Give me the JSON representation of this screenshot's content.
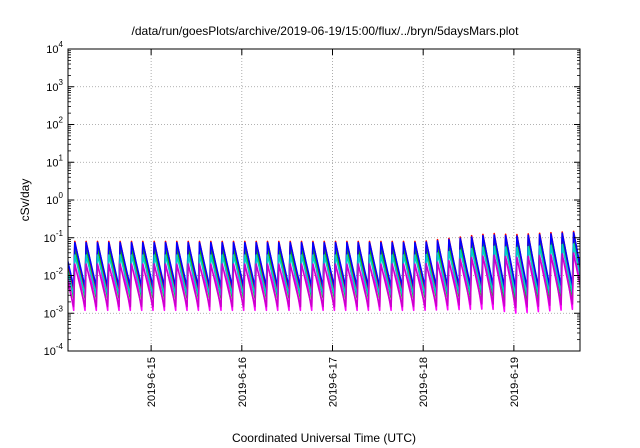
{
  "chart_data": {
    "type": "line",
    "title": "/data/run/goesPlots/archive/2019-06-19/15:00/flux/../bryn/5daysMars.plot",
    "xlabel": "Coordinated Universal Time (UTC)",
    "ylabel": "cSv/day",
    "yscale": "log",
    "ylim": [
      0.0001,
      10000
    ],
    "y_ticks": [
      {
        "base": "10",
        "exp": "-4"
      },
      {
        "base": "10",
        "exp": "-3"
      },
      {
        "base": "10",
        "exp": "-2"
      },
      {
        "base": "10",
        "exp": "-1"
      },
      {
        "base": "10",
        "exp": "0"
      },
      {
        "base": "10",
        "exp": "1"
      },
      {
        "base": "10",
        "exp": "2"
      },
      {
        "base": "10",
        "exp": "3"
      },
      {
        "base": "10",
        "exp": "4"
      }
    ],
    "x_ticks": [
      "2019-6-15",
      "2019-6-16",
      "2019-6-17",
      "2019-6-18",
      "2019-6-19"
    ],
    "xlim": [
      "2019-06-14 02:00",
      "2019-06-19 17:30"
    ],
    "grid": true,
    "oscillation_period_hours": 3,
    "series": [
      {
        "color": "#ff00ff",
        "x": [
          "2019-06-14",
          "2019-06-15",
          "2019-06-16",
          "2019-06-17",
          "2019-06-18",
          "2019-06-18 18:00",
          "2019-06-19",
          "2019-06-19 17:00"
        ],
        "peaks": [
          0.055,
          0.055,
          0.055,
          0.055,
          0.055,
          0.09,
          0.08,
          0.1
        ],
        "troughs": [
          0.0012,
          0.0012,
          0.0012,
          0.0012,
          0.0012,
          0.0013,
          0.001,
          0.0013
        ]
      },
      {
        "color": "#00cc00",
        "x": [
          "2019-06-14",
          "2019-06-15",
          "2019-06-16",
          "2019-06-17",
          "2019-06-18",
          "2019-06-18 18:00",
          "2019-06-19",
          "2019-06-19 17:00"
        ],
        "peaks": [
          0.06,
          0.06,
          0.06,
          0.06,
          0.06,
          0.1,
          0.09,
          0.11
        ],
        "troughs": [
          0.0025,
          0.0025,
          0.0025,
          0.0025,
          0.0025,
          0.0028,
          0.002,
          0.0028
        ]
      },
      {
        "color": "#ff0000",
        "x": [
          "2019-06-14",
          "2019-06-15",
          "2019-06-16",
          "2019-06-17",
          "2019-06-18",
          "2019-06-18 18:00",
          "2019-06-19",
          "2019-06-19 17:00"
        ],
        "peaks": [
          0.08,
          0.08,
          0.08,
          0.08,
          0.08,
          0.13,
          0.12,
          0.15
        ],
        "troughs": [
          0.004,
          0.004,
          0.004,
          0.004,
          0.004,
          0.0045,
          0.0035,
          0.0045
        ]
      },
      {
        "color": "#0000ff",
        "x": [
          "2019-06-14",
          "2019-06-15",
          "2019-06-16",
          "2019-06-17",
          "2019-06-18",
          "2019-06-18 18:00",
          "2019-06-19",
          "2019-06-19 17:00"
        ],
        "peaks": [
          0.075,
          0.075,
          0.075,
          0.075,
          0.075,
          0.12,
          0.11,
          0.14
        ],
        "troughs": [
          0.005,
          0.005,
          0.005,
          0.005,
          0.005,
          0.0055,
          0.0045,
          0.0055
        ]
      },
      {
        "color": "#00cccc",
        "x": [
          "2019-06-14",
          "2019-06-15",
          "2019-06-16",
          "2019-06-17",
          "2019-06-18",
          "2019-06-18 18:00",
          "2019-06-19",
          "2019-06-19 17:00"
        ],
        "peaks": [
          0.035,
          0.035,
          0.035,
          0.035,
          0.035,
          0.06,
          0.055,
          0.07
        ],
        "troughs": [
          0.003,
          0.003,
          0.003,
          0.003,
          0.003,
          0.0035,
          0.0028,
          0.0035
        ]
      },
      {
        "color": "#cc00cc",
        "x": [
          "2019-06-14",
          "2019-06-15",
          "2019-06-16",
          "2019-06-17",
          "2019-06-18",
          "2019-06-18 18:00",
          "2019-06-19",
          "2019-06-19 17:00"
        ],
        "peaks": [
          0.02,
          0.02,
          0.02,
          0.02,
          0.02,
          0.035,
          0.03,
          0.04
        ],
        "troughs": [
          0.0015,
          0.0015,
          0.0015,
          0.0015,
          0.0015,
          0.0018,
          0.0014,
          0.0018
        ]
      }
    ]
  }
}
